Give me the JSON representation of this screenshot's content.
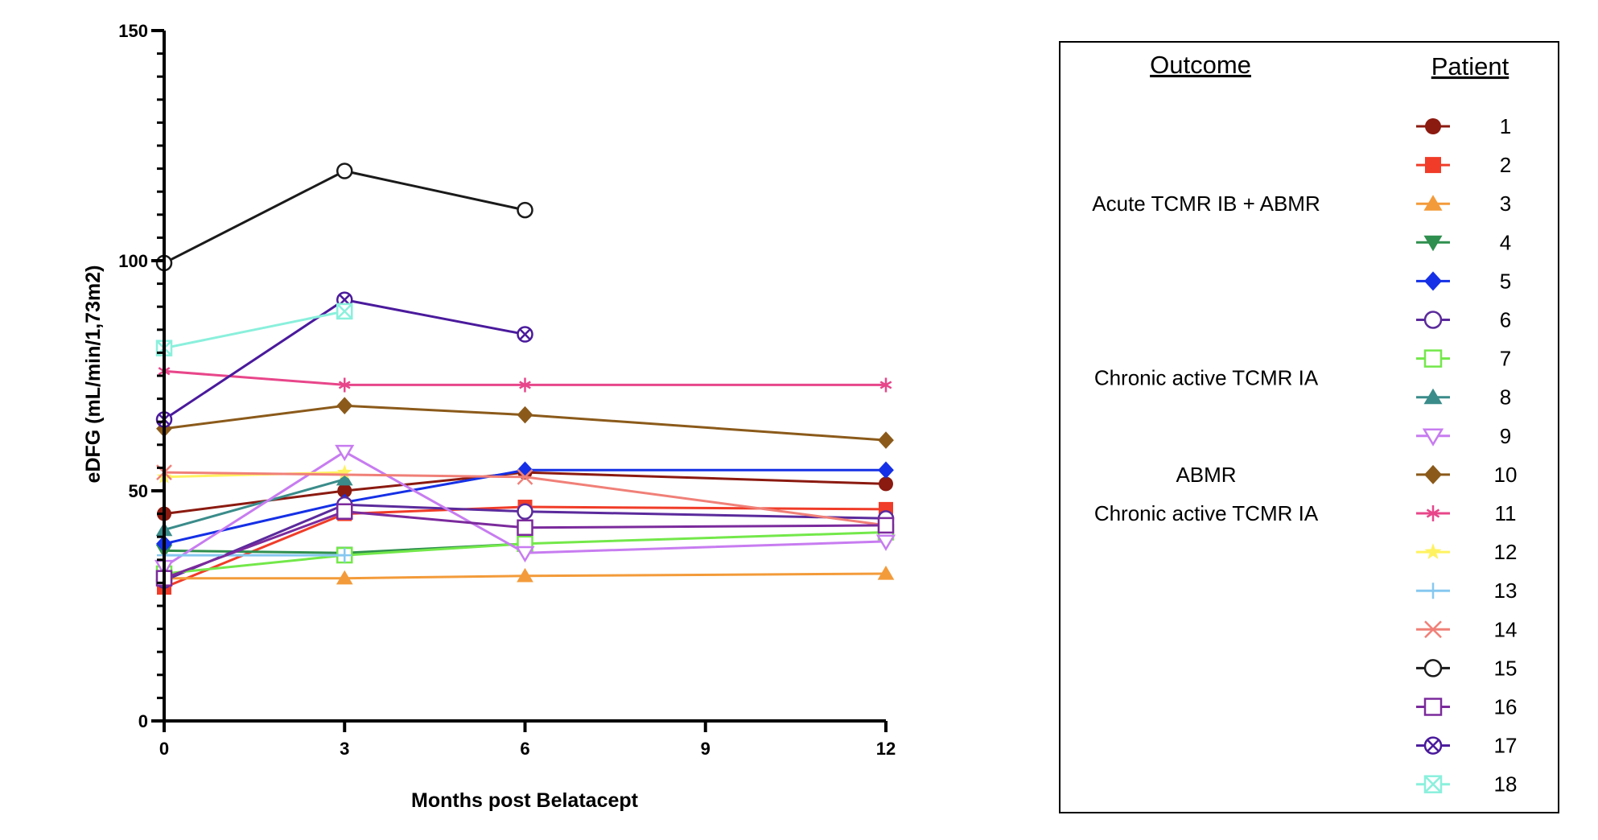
{
  "chart_data": {
    "type": "line",
    "xlabel": "Months post Belatacept",
    "ylabel": "eDFG (mL/min/1,73m2)",
    "x_ticks": [
      0,
      3,
      6,
      9,
      12
    ],
    "y_ticks": [
      0,
      50,
      100,
      150
    ],
    "xlim": [
      0,
      12
    ],
    "ylim": [
      0,
      150
    ],
    "legend": {
      "placement": "right",
      "outcome_header": "Outcome",
      "patient_header": "Patient",
      "outcomes": [
        {
          "label": "Acute TCMR IB + ABMR",
          "patients": [
            1,
            2,
            3,
            4,
            5
          ]
        },
        {
          "label": "Chronic active TCMR IA",
          "patients": [
            6,
            7,
            8,
            9
          ]
        },
        {
          "label": "ABMR",
          "patients": [
            10
          ]
        },
        {
          "label": "Chronic active TCMR IA",
          "patients": [
            11
          ]
        }
      ]
    },
    "series": [
      {
        "name": "1",
        "color": "#8B1A10",
        "marker": "circle-filled",
        "x": [
          0,
          3,
          6,
          12
        ],
        "y": [
          45,
          50,
          54,
          51.5
        ]
      },
      {
        "name": "2",
        "color": "#F03C28",
        "marker": "square-filled",
        "x": [
          0,
          3,
          6,
          12
        ],
        "y": [
          29,
          45,
          46.5,
          46
        ]
      },
      {
        "name": "3",
        "color": "#F39B3A",
        "marker": "triangle-up",
        "x": [
          0,
          3,
          6,
          12
        ],
        "y": [
          31,
          31,
          31.5,
          32
        ]
      },
      {
        "name": "4",
        "color": "#2F8F4E",
        "marker": "triangle-down",
        "x": [
          0,
          3,
          6
        ],
        "y": [
          37,
          36.5,
          38.5
        ]
      },
      {
        "name": "5",
        "color": "#1530E6",
        "marker": "diamond-filled",
        "x": [
          0,
          3,
          6,
          12
        ],
        "y": [
          38.5,
          47.5,
          54.5,
          54.5
        ]
      },
      {
        "name": "6",
        "color": "#5B2A9C",
        "marker": "circle-open",
        "x": [
          0,
          3,
          6,
          12
        ],
        "y": [
          30.5,
          47,
          45.5,
          44
        ]
      },
      {
        "name": "7",
        "color": "#73E84A",
        "marker": "square-open",
        "x": [
          0,
          3,
          6,
          12
        ],
        "y": [
          32,
          36,
          38.5,
          41
        ]
      },
      {
        "name": "8",
        "color": "#3A8C8A",
        "marker": "triangle-filled",
        "x": [
          0,
          3
        ],
        "y": [
          41.5,
          52.5
        ]
      },
      {
        "name": "9",
        "color": "#C77CF0",
        "marker": "triangle-down-open",
        "x": [
          0,
          3,
          6,
          12
        ],
        "y": [
          33.5,
          58.5,
          36.5,
          39
        ]
      },
      {
        "name": "10",
        "color": "#8B5A1A",
        "marker": "diamond-filled",
        "x": [
          0,
          3,
          6,
          12
        ],
        "y": [
          63.5,
          68.5,
          66.5,
          61
        ]
      },
      {
        "name": "11",
        "color": "#E8468A",
        "marker": "asterisk",
        "x": [
          0,
          3,
          6,
          12
        ],
        "y": [
          76,
          73,
          73,
          73
        ]
      },
      {
        "name": "12",
        "color": "#FFF260",
        "marker": "star",
        "x": [
          0,
          3
        ],
        "y": [
          53,
          54
        ]
      },
      {
        "name": "13",
        "color": "#86C8F0",
        "marker": "plus",
        "x": [
          0,
          3
        ],
        "y": [
          36,
          36
        ]
      },
      {
        "name": "14",
        "color": "#F08078",
        "marker": "cross",
        "x": [
          0,
          6,
          12
        ],
        "y": [
          54,
          53,
          42.5
        ]
      },
      {
        "name": "15",
        "color": "#1A1A1A",
        "marker": "circle-open",
        "x": [
          0,
          3,
          6
        ],
        "y": [
          99.5,
          119.5,
          111
        ]
      },
      {
        "name": "16",
        "color": "#7B2A9C",
        "marker": "square-open",
        "x": [
          0,
          3,
          6,
          12
        ],
        "y": [
          31,
          45.5,
          42,
          42.5
        ]
      },
      {
        "name": "17",
        "color": "#4A1A9C",
        "marker": "circle-x",
        "x": [
          0,
          3,
          6
        ],
        "y": [
          65.5,
          91.5,
          84
        ]
      },
      {
        "name": "18",
        "color": "#8AF0DC",
        "marker": "square-x",
        "x": [
          0,
          3
        ],
        "y": [
          81,
          89
        ]
      }
    ]
  }
}
